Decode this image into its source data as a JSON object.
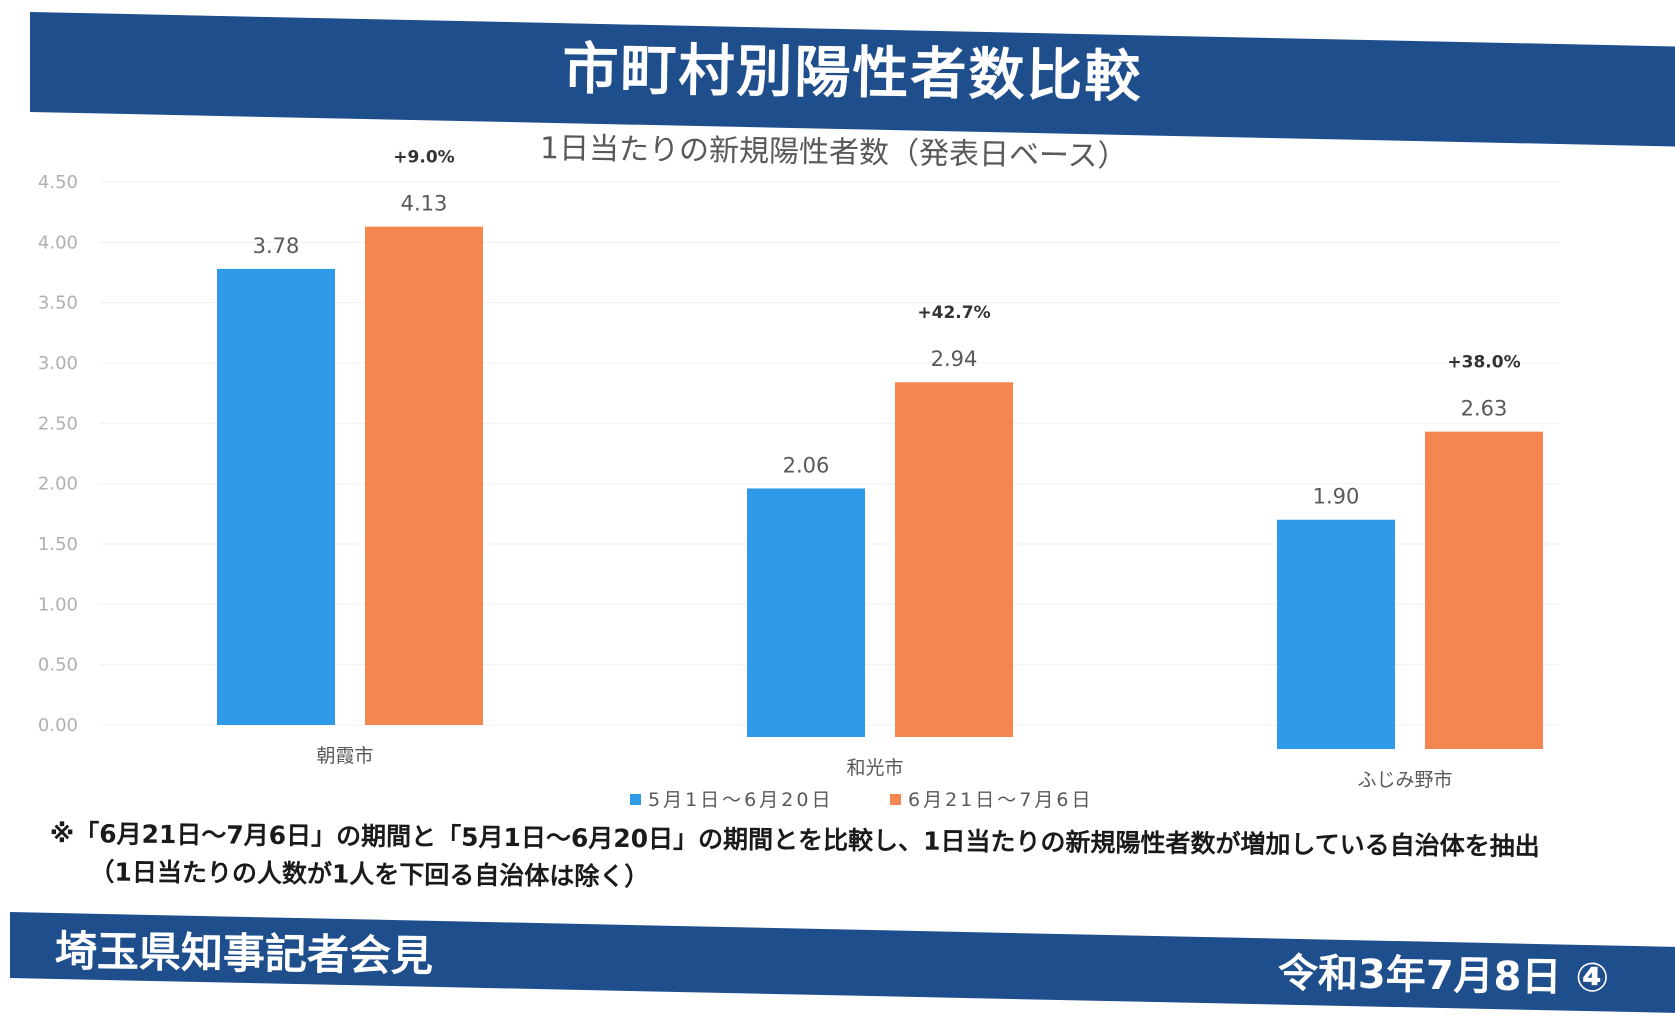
{
  "header": {
    "title": "市町村別陽性者数比較"
  },
  "footnote": {
    "line1": "※「6月21日～7月6日」の期間と「5月1日～6月20日」の期間とを比較し、1日当たりの新規陽性者数が増加している自治体を抽出",
    "line2": "（1日当たりの人数が1人を下回る自治体は除く）"
  },
  "footer": {
    "left": "埼玉県知事記者会見",
    "right": "令和3年7月8日 ④"
  },
  "colors": {
    "banner": "#1f4e8c",
    "series1": "#2e9ae8",
    "series2": "#f4874f"
  },
  "chart_data": {
    "type": "bar",
    "title": "1日当たりの新規陽性者数（発表日ベース）",
    "categories": [
      "朝霞市",
      "和光市",
      "ふじみ野市"
    ],
    "series": [
      {
        "name": "5月1日～6月20日",
        "values": [
          3.78,
          2.06,
          1.9
        ],
        "labels": [
          "3.78",
          "2.06",
          "1.90"
        ]
      },
      {
        "name": "6月21日～7月6日",
        "values": [
          4.13,
          2.94,
          2.63
        ],
        "labels": [
          "4.13",
          "2.94",
          "2.63"
        ]
      }
    ],
    "annotations": [
      "+9.0%",
      "+42.7%",
      "+38.0%"
    ],
    "yticks": [
      "0.00",
      "0.50",
      "1.00",
      "1.50",
      "2.00",
      "2.50",
      "3.00",
      "3.50",
      "4.00",
      "4.50"
    ],
    "ylim": [
      0,
      4.5
    ],
    "grid": true,
    "legend": "bottom"
  }
}
